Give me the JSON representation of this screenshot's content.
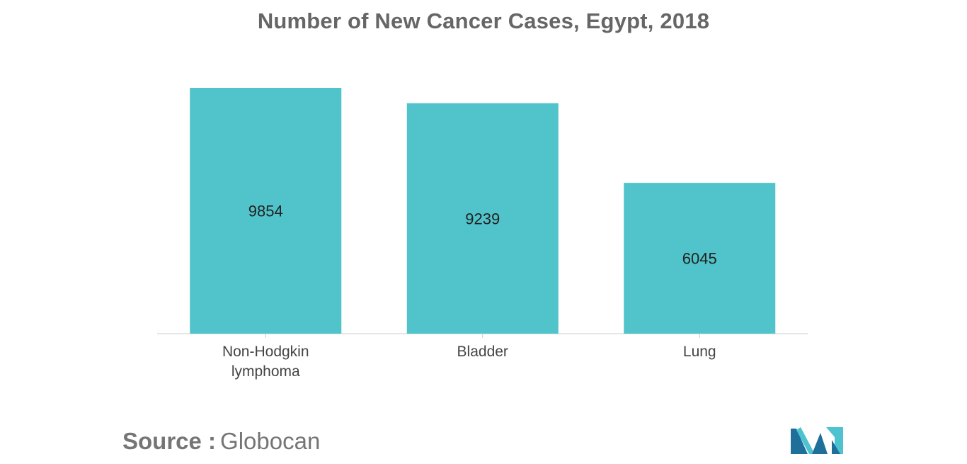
{
  "chart_data": {
    "type": "bar",
    "title": "Number of New Cancer Cases, Egypt, 2018",
    "categories": [
      "Non-Hodgkin\nlymphoma",
      "Bladder",
      "Lung"
    ],
    "values": [
      9854,
      9239,
      6045
    ],
    "data_labels": [
      "9854",
      "9239",
      "6045"
    ],
    "xlabel": "",
    "ylabel": "",
    "ylim": [
      0,
      9854
    ],
    "grid": false,
    "legend": "none",
    "bar_color": "#50C4CA"
  },
  "source": {
    "label": "Source :",
    "value": "Globocan"
  },
  "colors": {
    "title": "#666666",
    "source": "#757575",
    "axis": "#cccccc",
    "logo_dark": "#1e6f9a",
    "logo_light": "#4cc3cf"
  },
  "logo": {
    "icon": "company-logo-icon"
  }
}
